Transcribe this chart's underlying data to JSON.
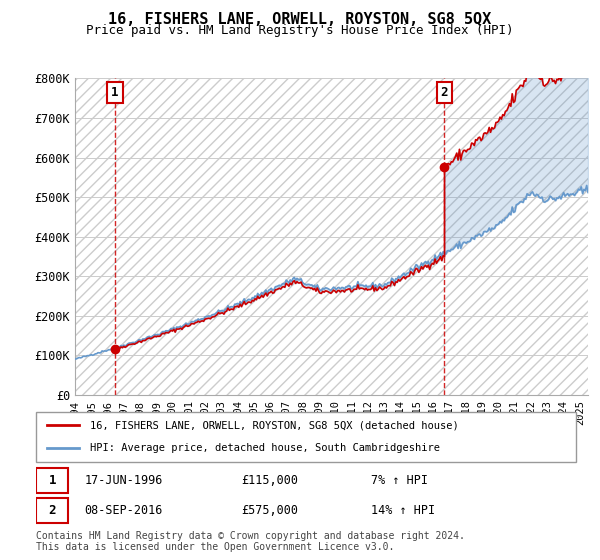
{
  "title": "16, FISHERS LANE, ORWELL, ROYSTON, SG8 5QX",
  "subtitle": "Price paid vs. HM Land Registry's House Price Index (HPI)",
  "ylabel_ticks": [
    "£0",
    "£100K",
    "£200K",
    "£300K",
    "£400K",
    "£500K",
    "£600K",
    "£700K",
    "£800K"
  ],
  "ylim": [
    0,
    800000
  ],
  "xlim_start": 1994.0,
  "xlim_end": 2025.5,
  "xtick_years": [
    1994,
    1995,
    1996,
    1997,
    1998,
    1999,
    2000,
    2001,
    2002,
    2003,
    2004,
    2005,
    2006,
    2007,
    2008,
    2009,
    2010,
    2011,
    2012,
    2013,
    2014,
    2015,
    2016,
    2017,
    2018,
    2019,
    2020,
    2021,
    2022,
    2023,
    2024,
    2025
  ],
  "sale1_x": 1996.46,
  "sale1_y": 115000,
  "sale1_label": "1",
  "sale1_date": "17-JUN-1996",
  "sale1_price": "£115,000",
  "sale1_hpi": "7% ↑ HPI",
  "sale2_x": 2016.68,
  "sale2_y": 575000,
  "sale2_label": "2",
  "sale2_date": "08-SEP-2016",
  "sale2_price": "£575,000",
  "sale2_hpi": "14% ↑ HPI",
  "line_color_property": "#cc0000",
  "line_color_hpi": "#6699cc",
  "vline_color": "#cc0000",
  "legend_property": "16, FISHERS LANE, ORWELL, ROYSTON, SG8 5QX (detached house)",
  "legend_hpi": "HPI: Average price, detached house, South Cambridgeshire",
  "footer": "Contains HM Land Registry data © Crown copyright and database right 2024.\nThis data is licensed under the Open Government Licence v3.0."
}
